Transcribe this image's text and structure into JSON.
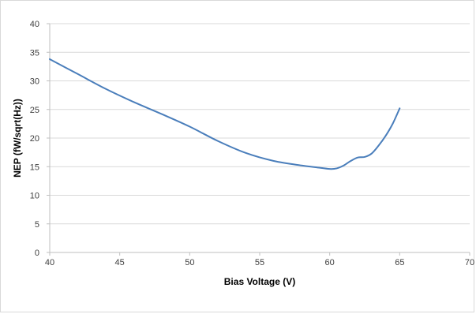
{
  "chart_data": {
    "type": "line",
    "title": "",
    "xlabel": "Bias Voltage (V)",
    "ylabel": "NEP (fW/sqrt(Hz))",
    "xlim": [
      40,
      70
    ],
    "ylim": [
      0,
      40
    ],
    "xticks": [
      40,
      45,
      50,
      55,
      60,
      65,
      70
    ],
    "yticks": [
      0,
      5,
      10,
      15,
      20,
      25,
      30,
      35,
      40
    ],
    "grid": true,
    "legend": "none",
    "series": [
      {
        "color": "#4a7ebb",
        "x": [
          40,
          42,
          44,
          46,
          48,
          50,
          52,
          54,
          56,
          58,
          59,
          60,
          60.5,
          61,
          61.5,
          62,
          62.5,
          63,
          63.5,
          64,
          64.5,
          65
        ],
        "y": [
          33.8,
          31.2,
          28.6,
          26.3,
          24.2,
          22.0,
          19.5,
          17.4,
          16.0,
          15.2,
          14.9,
          14.6,
          14.7,
          15.2,
          16.0,
          16.6,
          16.7,
          17.3,
          18.7,
          20.4,
          22.5,
          25.2
        ]
      }
    ]
  }
}
